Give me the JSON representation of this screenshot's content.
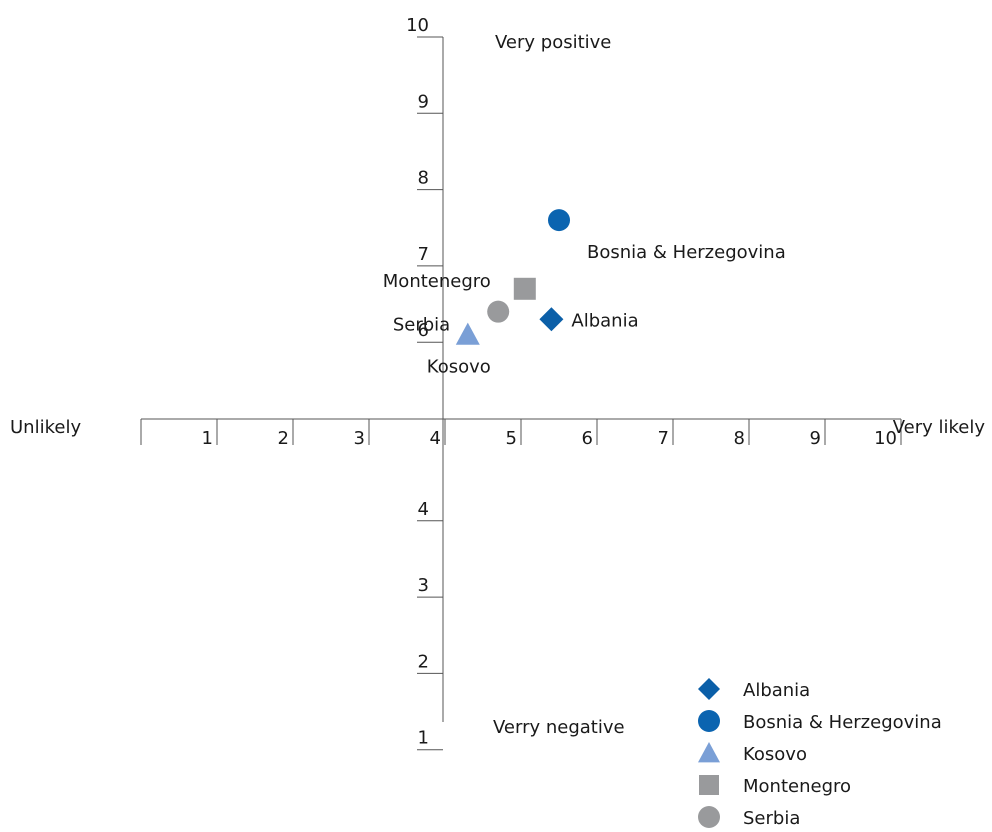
{
  "chart_data": {
    "type": "scatter",
    "x_axis": {
      "ticks": [
        1,
        2,
        3,
        4,
        5,
        6,
        7,
        8,
        9,
        10
      ],
      "min_label": "Unlikely",
      "max_label": "Very likely"
    },
    "y_axis": {
      "ticks": [
        1,
        2,
        3,
        4,
        5,
        6,
        7,
        8,
        9,
        10
      ],
      "shown_tick_labels": [
        1,
        2,
        3,
        4,
        6,
        7,
        8,
        9,
        10
      ],
      "max_label": "Very positive",
      "min_label": "Verry negative"
    },
    "xlim": [
      0,
      10
    ],
    "ylim": [
      0,
      10
    ],
    "axes_cross_at": {
      "x": 5,
      "y": 5
    },
    "grid": false,
    "legend_position": "bottom-right",
    "series": [
      {
        "name": "Albania",
        "marker": "diamond",
        "color": "#0b5fa8",
        "x": 5.4,
        "y": 6.3,
        "label": "Albania"
      },
      {
        "name": "Bosnia & Herzegovina",
        "marker": "circle",
        "color": "#0b64b0",
        "x": 5.5,
        "y": 7.6,
        "label": "Bosnia & Herzegovina"
      },
      {
        "name": "Kosovo",
        "marker": "triangle",
        "color": "#7a9fd6",
        "x": 4.3,
        "y": 6.1,
        "label": "Kosovo"
      },
      {
        "name": "Montenegro",
        "marker": "square",
        "color": "#999a9c",
        "x": 5.05,
        "y": 6.7,
        "label": "Montenegro"
      },
      {
        "name": "Serbia",
        "marker": "circle",
        "color": "#999a9c",
        "x": 4.7,
        "y": 6.4,
        "label": "Serbia"
      }
    ]
  }
}
